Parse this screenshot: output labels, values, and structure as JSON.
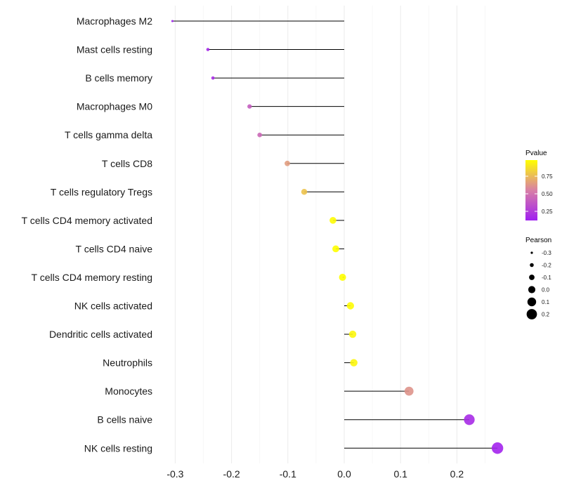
{
  "chart_data": {
    "type": "lollipop",
    "title": "",
    "xlabel": "",
    "ylabel": "",
    "xlim": [
      -0.32,
      0.29
    ],
    "x_ticks": [
      -0.3,
      -0.2,
      -0.1,
      0.0,
      0.1,
      0.2
    ],
    "x_tick_labels": [
      "-0.3",
      "-0.2",
      "-0.1",
      "0.0",
      "0.1",
      "0.2"
    ],
    "grid": true,
    "categories": [
      "Macrophages M2",
      "Mast cells resting",
      "B cells memory",
      "Macrophages M0",
      "T cells gamma delta",
      "T cells CD8",
      "T cells regulatory  Tregs",
      "T cells CD4 memory activated",
      "T cells CD4 naive",
      "T cells CD4 memory resting",
      "NK cells activated",
      "Dendritic cells activated",
      "Neutrophils",
      "Monocytes",
      "B cells naive",
      "NK cells resting"
    ],
    "pearson": [
      -0.305,
      -0.242,
      -0.233,
      -0.168,
      -0.15,
      -0.101,
      -0.071,
      -0.02,
      -0.015,
      -0.003,
      0.011,
      0.015,
      0.017,
      0.115,
      0.222,
      0.272
    ],
    "pvalue": [
      0.12,
      0.16,
      0.18,
      0.4,
      0.45,
      0.65,
      0.78,
      0.97,
      0.98,
      0.99,
      0.97,
      0.95,
      0.95,
      0.62,
      0.17,
      0.14
    ],
    "legend": {
      "placement": "right",
      "color": {
        "title": "Pvalue",
        "labels": [
          "0.75",
          "0.50",
          "0.25"
        ],
        "values": [
          0.75,
          0.5,
          0.25
        ],
        "range": [
          0.12,
          0.98
        ],
        "low_color": "#a020f0",
        "mid_color": "#d87fa6",
        "high_color": "#ffff00"
      },
      "size": {
        "title": "Pearson",
        "labels": [
          "-0.3",
          "-0.2",
          "-0.1",
          "0.0",
          "0.1",
          "0.2"
        ],
        "values": [
          -0.3,
          -0.2,
          -0.1,
          0.0,
          0.1,
          0.2
        ]
      }
    }
  }
}
